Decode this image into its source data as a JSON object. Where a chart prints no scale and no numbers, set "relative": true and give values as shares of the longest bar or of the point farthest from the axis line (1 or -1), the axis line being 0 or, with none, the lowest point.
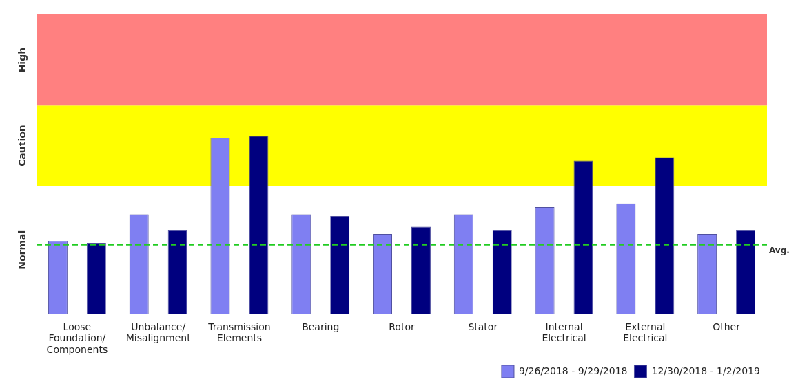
{
  "chart_data": {
    "type": "bar",
    "relative": true,
    "categories": [
      "Loose Foundation/ Components",
      "Unbalance/ Misalignment",
      "Transmission Elements",
      "Bearing",
      "Rotor",
      "Stator",
      "Internal Electrical",
      "External Electrical",
      "Other"
    ],
    "series": [
      {
        "name": "9/26/2018 - 9/29/2018",
        "color": "#7f7ff2",
        "values": [
          0.41,
          0.56,
          0.99,
          0.56,
          0.45,
          0.56,
          0.6,
          0.62,
          0.45
        ]
      },
      {
        "name": "12/30/2018 - 1/2/2019",
        "color": "#00007f",
        "values": [
          0.4,
          0.47,
          1.0,
          0.55,
          0.49,
          0.47,
          0.86,
          0.88,
          0.47
        ]
      }
    ],
    "bands": [
      {
        "axis": "y",
        "from": 0,
        "to": 0.72,
        "label": "Normal",
        "color": "#ffffff"
      },
      {
        "axis": "y",
        "from": 0.72,
        "to": 1.17,
        "label": "Caution",
        "color": "#ffff00"
      },
      {
        "axis": "y",
        "from": 1.17,
        "to": 1.68,
        "label": "High",
        "color": "#ff8080"
      }
    ],
    "ref_lines": [
      {
        "axis": "y",
        "value": 0.39,
        "label": "Avg.",
        "color": "#22cc22",
        "line_style": "dashed"
      }
    ],
    "legend": "bottom right",
    "grid": false
  }
}
